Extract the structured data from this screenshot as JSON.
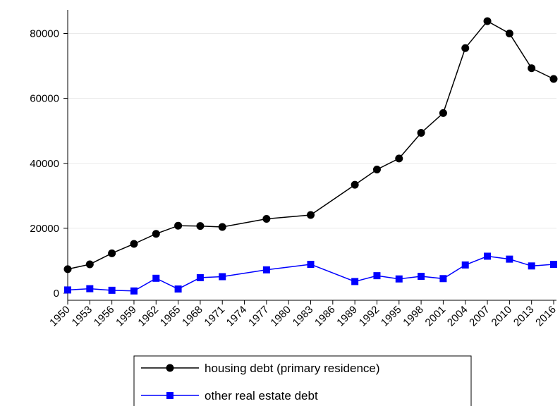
{
  "chart_data": {
    "type": "line",
    "title": "",
    "xlabel": "",
    "ylabel": "",
    "x": [
      1950,
      1953,
      1956,
      1959,
      1962,
      1965,
      1968,
      1971,
      1977,
      1983,
      1989,
      1992,
      1995,
      1998,
      2001,
      2004,
      2007,
      2010,
      2013,
      2016
    ],
    "x_ticks": [
      "1950",
      "1953",
      "1956",
      "1959",
      "1962",
      "1965",
      "1968",
      "1971",
      "1974",
      "1977",
      "1980",
      "1983",
      "1986",
      "1989",
      "1992",
      "1995",
      "1998",
      "2001",
      "2004",
      "2007",
      "2010",
      "2013",
      "2016"
    ],
    "xlim": [
      1950,
      2016
    ],
    "y_ticks": [
      0,
      20000,
      40000,
      60000,
      80000
    ],
    "ylim": [
      0,
      80000
    ],
    "grid": true,
    "legend_position": "bottom",
    "series": [
      {
        "name": "housing debt (primary residence)",
        "color": "#000000",
        "marker": "circle",
        "values": [
          7400,
          8900,
          12300,
          15200,
          18300,
          20800,
          20700,
          20400,
          22900,
          24100,
          33400,
          38100,
          41500,
          49400,
          55500,
          75500,
          83800,
          80000,
          69300,
          66000
        ]
      },
      {
        "name": "other real estate debt",
        "color": "#0000ff",
        "marker": "square",
        "values": [
          1000,
          1400,
          900,
          700,
          4600,
          1300,
          4800,
          5100,
          7200,
          8900,
          3600,
          5400,
          4400,
          5200,
          4500,
          8700,
          11400,
          10500,
          8400,
          8900
        ]
      }
    ]
  }
}
